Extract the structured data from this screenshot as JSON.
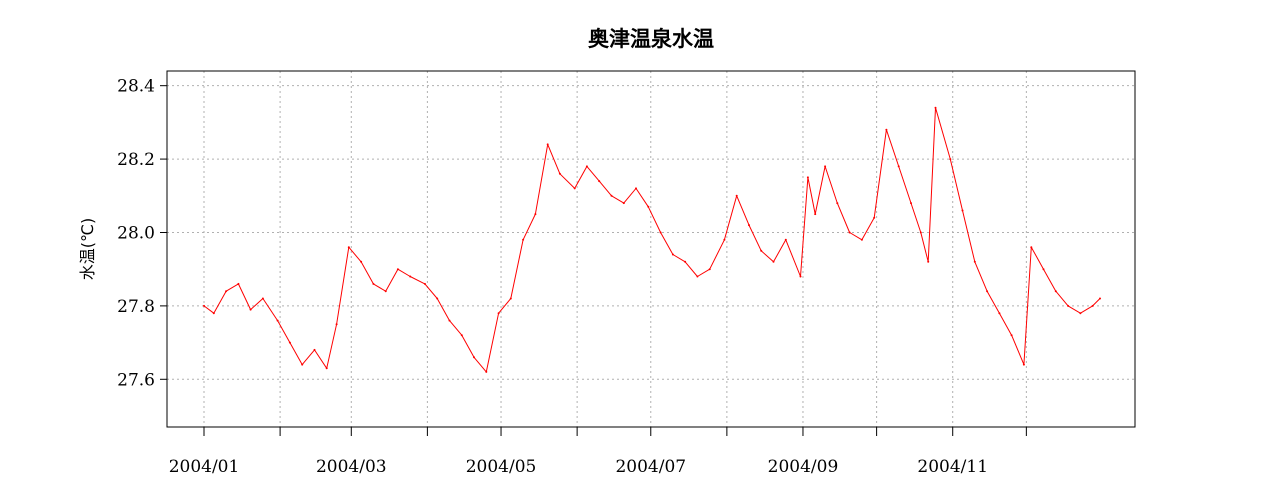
{
  "chart_data": {
    "type": "line",
    "title": "奥津温泉水温",
    "xlabel": "",
    "ylabel": "水温(℃)",
    "x_range": [
      "2004-01-01",
      "2004-12-31"
    ],
    "ylim": [
      27.47,
      28.44
    ],
    "yticks": [
      27.6,
      27.8,
      28.0,
      28.2,
      28.4
    ],
    "ytick_labels": [
      "27.6",
      "27.8",
      "28.0",
      "28.2",
      "28.4"
    ],
    "xticks": [
      "2004-01-01",
      "2004-02-01",
      "2004-03-01",
      "2004-04-01",
      "2004-05-01",
      "2004-06-01",
      "2004-07-01",
      "2004-08-01",
      "2004-09-01",
      "2004-10-01",
      "2004-11-01",
      "2004-12-01"
    ],
    "xtick_labels": [
      "2004/01",
      "",
      "2004/03",
      "",
      "2004/05",
      "",
      "2004/07",
      "",
      "2004/09",
      "",
      "2004/11",
      ""
    ],
    "grid": true,
    "series_color": "#ff0000",
    "series": [
      {
        "x": [
          "2004-01-01",
          "2004-01-05",
          "2004-01-10",
          "2004-01-15",
          "2004-01-20",
          "2004-01-25",
          "2004-01-31",
          "2004-02-05",
          "2004-02-10",
          "2004-02-15",
          "2004-02-20",
          "2004-02-24",
          "2004-02-29",
          "2004-03-05",
          "2004-03-10",
          "2004-03-15",
          "2004-03-20",
          "2004-03-25",
          "2004-03-31",
          "2004-04-05",
          "2004-04-10",
          "2004-04-15",
          "2004-04-20",
          "2004-04-25",
          "2004-04-30",
          "2004-05-05",
          "2004-05-10",
          "2004-05-15",
          "2004-05-20",
          "2004-05-25",
          "2004-05-31",
          "2004-06-05",
          "2004-06-10",
          "2004-06-15",
          "2004-06-20",
          "2004-06-25",
          "2004-06-30",
          "2004-07-05",
          "2004-07-10",
          "2004-07-15",
          "2004-07-20",
          "2004-07-25",
          "2004-07-31",
          "2004-08-05",
          "2004-08-10",
          "2004-08-15",
          "2004-08-20",
          "2004-08-25",
          "2004-08-31",
          "2004-09-03",
          "2004-09-06",
          "2004-09-10",
          "2004-09-15",
          "2004-09-20",
          "2004-09-25",
          "2004-09-30",
          "2004-10-05",
          "2004-10-10",
          "2004-10-15",
          "2004-10-19",
          "2004-10-22",
          "2004-10-25",
          "2004-10-31",
          "2004-11-05",
          "2004-11-10",
          "2004-11-15",
          "2004-11-20",
          "2004-11-25",
          "2004-11-30",
          "2004-12-03",
          "2004-12-08",
          "2004-12-13",
          "2004-12-18",
          "2004-12-23",
          "2004-12-28",
          "2004-12-31"
        ],
        "y": [
          27.8,
          27.78,
          27.84,
          27.86,
          27.79,
          27.82,
          27.76,
          27.7,
          27.64,
          27.68,
          27.63,
          27.75,
          27.96,
          27.92,
          27.86,
          27.84,
          27.9,
          27.88,
          27.86,
          27.82,
          27.76,
          27.72,
          27.66,
          27.62,
          27.78,
          27.82,
          27.98,
          28.05,
          28.24,
          28.16,
          28.12,
          28.18,
          28.14,
          28.1,
          28.08,
          28.12,
          28.07,
          28.0,
          27.94,
          27.92,
          27.88,
          27.9,
          27.98,
          28.1,
          28.02,
          27.95,
          27.92,
          27.98,
          27.88,
          28.15,
          28.05,
          28.18,
          28.08,
          28.0,
          27.98,
          28.04,
          28.28,
          28.18,
          28.08,
          28.0,
          27.92,
          28.34,
          28.2,
          28.06,
          27.92,
          27.84,
          27.78,
          27.72,
          27.64,
          27.96,
          27.9,
          27.84,
          27.8,
          27.78,
          27.8,
          27.82
        ]
      }
    ]
  }
}
